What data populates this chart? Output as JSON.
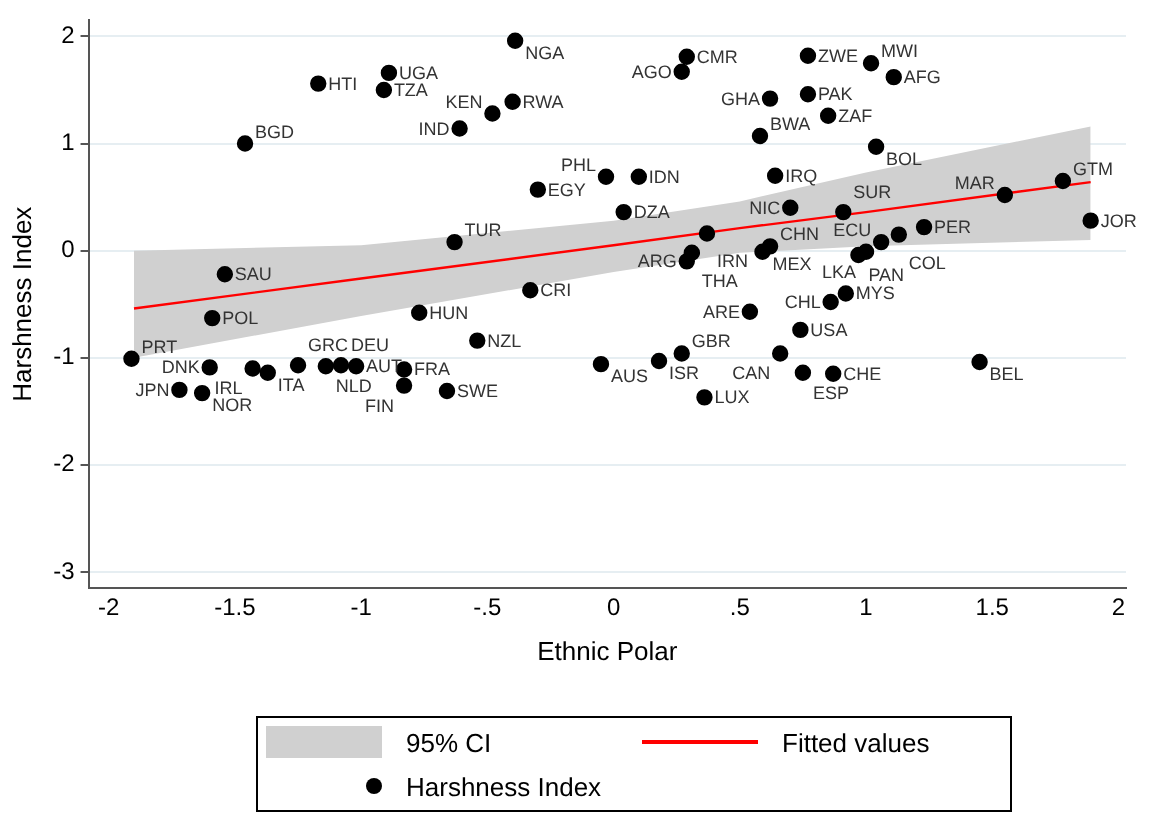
{
  "chart_data": {
    "type": "scatter",
    "xlabel": "Ethnic Polar",
    "ylabel": "Harshness Index",
    "xlim": [
      -2.08,
      2.03
    ],
    "ylim": [
      -3.15,
      2.15
    ],
    "xticks": [
      -2,
      -1.5,
      -1,
      {
        "value": -0.5,
        "label": "-.5"
      },
      0,
      {
        "value": 0.5,
        "label": ".5"
      },
      1,
      1.5,
      2
    ],
    "yticks": [
      -3,
      -2,
      -1,
      0,
      1,
      2
    ],
    "grid": "y",
    "legend": "bottom",
    "annotations": [
      "95% CI"
    ],
    "marker": "circle",
    "series": [
      {
        "name": "Fitted values",
        "type": "line",
        "color": "#ff0000",
        "marker": "none",
        "x": [
          -1.9,
          -1,
          0,
          0.5,
          1,
          1.89
        ],
        "values": [
          -0.54,
          -0.26,
          0.05,
          0.21,
          0.36,
          0.64
        ],
        "lower": [
          -1.0,
          -0.61,
          -0.2,
          -0.02,
          0.04,
          0.1
        ],
        "upper": [
          0.0,
          0.05,
          0.28,
          0.46,
          0.73,
          1.16
        ]
      },
      {
        "name": "Harshness Index",
        "type": "scatter",
        "color": "#000000",
        "x": [
          -0.39,
          -1.17,
          -0.89,
          -0.91,
          -0.4,
          -0.48,
          -0.61,
          -1.46,
          -0.3,
          -0.03,
          0.1,
          0.04,
          -0.63,
          -1.54,
          -0.33,
          -1.59,
          -0.77,
          -0.54,
          -1.91,
          -1.6,
          -1.43,
          -1.37,
          -1.25,
          -1.14,
          -1.08,
          -1.02,
          -0.83,
          -0.83,
          -0.66,
          -1.72,
          -1.63,
          -0.05,
          0.18,
          0.27,
          0.66,
          0.75,
          0.87,
          1.45,
          0.36,
          0.29,
          0.27,
          0.77,
          1.02,
          1.11,
          0.62,
          0.77,
          0.85,
          0.58,
          1.04,
          0.64,
          0.7,
          0.91,
          1.55,
          1.78,
          1.89,
          0.37,
          0.31,
          0.29,
          0.59,
          0.62,
          1.23,
          1.13,
          1.06,
          1.0,
          0.97,
          0.92,
          0.86,
          0.54,
          0.74
        ],
        "values": [
          1.96,
          1.56,
          1.66,
          1.5,
          1.39,
          1.28,
          1.14,
          1.0,
          0.57,
          0.69,
          0.69,
          0.36,
          0.08,
          -0.22,
          -0.37,
          -0.63,
          -0.58,
          -0.84,
          -1.01,
          -1.09,
          -1.1,
          -1.14,
          -1.07,
          -1.08,
          -1.07,
          -1.08,
          -1.11,
          -1.26,
          -1.31,
          -1.3,
          -1.33,
          -1.06,
          -1.03,
          -0.96,
          -0.96,
          -1.14,
          -1.15,
          -1.04,
          -1.37,
          1.81,
          1.67,
          1.82,
          1.75,
          1.62,
          1.42,
          1.46,
          1.26,
          1.07,
          0.97,
          0.7,
          0.4,
          0.36,
          0.52,
          0.65,
          0.28,
          0.16,
          -0.02,
          -0.1,
          -0.01,
          0.04,
          0.22,
          0.15,
          0.08,
          -0.01,
          -0.04,
          -0.4,
          -0.48,
          -0.57,
          -0.74
        ],
        "value_labels": [
          "NGA",
          "HTI",
          "UGA",
          "TZA",
          "RWA",
          "KEN",
          "IND",
          "BGD",
          "EGY",
          "PHL",
          "IDN",
          "DZA",
          "TUR",
          "SAU",
          "CRI",
          "POL",
          "HUN",
          "NZL",
          "PRT",
          "DNK",
          "IRL",
          "ITA",
          "GRC",
          "NLD",
          "DEU",
          "AUT",
          "FRA",
          "FIN",
          "SWE",
          "JPN",
          "NOR",
          "AUS",
          "ISR",
          "GBR",
          "CAN",
          "ESP",
          "CHE",
          "BEL",
          "LUX",
          "CMR",
          "AGO",
          "ZWE",
          "MWI",
          "AFG",
          "GHA",
          "PAK",
          "ZAF",
          "BWA",
          "BOL",
          "IRQ",
          "NIC",
          "SUR",
          "MAR",
          "GTM",
          "JOR",
          "IRN",
          "THA",
          "ARG",
          "MEX",
          "CHN",
          "PER",
          "COL",
          "ECU",
          "LKA",
          "PAN",
          "MYS",
          "CHL",
          "ARE",
          "USA"
        ]
      }
    ]
  }
}
